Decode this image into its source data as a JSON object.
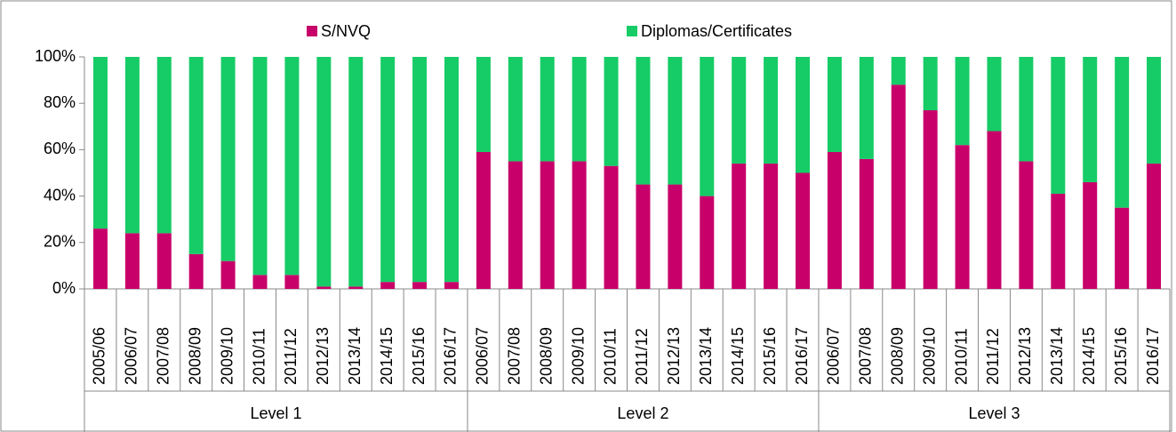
{
  "chart_data": {
    "type": "stacked_bar_percent",
    "groups": [
      "Level 1",
      "Level 2",
      "Level 3"
    ],
    "categories": [
      [
        "2005/06",
        "2006/07",
        "2007/08",
        "2008/09",
        "2009/10",
        "2010/11",
        "2011/12",
        "2012/13",
        "2013/14",
        "2014/15",
        "2015/16",
        "2016/17"
      ],
      [
        "2006/07",
        "2007/08",
        "2008/09",
        "2009/10",
        "2010/11",
        "2011/12",
        "2012/13",
        "2013/14",
        "2014/15",
        "2015/16",
        "2016/17"
      ],
      [
        "2006/07",
        "2007/08",
        "2008/09",
        "2009/10",
        "2010/11",
        "2011/12",
        "2012/13",
        "2013/14",
        "2014/15",
        "2015/16",
        "2016/17"
      ]
    ],
    "series": [
      {
        "name": "S/NVQ",
        "color": "#c8006a",
        "values": [
          [
            26,
            24,
            24,
            15,
            12,
            6,
            6,
            1,
            1,
            3,
            3,
            3
          ],
          [
            59,
            55,
            55,
            55,
            53,
            45,
            45,
            40,
            54,
            54,
            50
          ],
          [
            59,
            56,
            88,
            77,
            62,
            68,
            55,
            41,
            46,
            35,
            54
          ]
        ]
      },
      {
        "name": "Diplomas/Certificates",
        "color": "#16cc66",
        "values": [
          [
            74,
            76,
            76,
            85,
            88,
            94,
            94,
            99,
            99,
            97,
            97,
            97
          ],
          [
            41,
            45,
            45,
            45,
            47,
            55,
            55,
            60,
            46,
            46,
            50
          ],
          [
            41,
            44,
            12,
            23,
            38,
            32,
            45,
            59,
            54,
            65,
            46
          ]
        ]
      }
    ],
    "ylim": [
      0,
      100
    ],
    "yticks": [
      {
        "value": 0,
        "label": "0%"
      },
      {
        "value": 20,
        "label": "20%"
      },
      {
        "value": 40,
        "label": "40%"
      },
      {
        "value": 60,
        "label": "60%"
      },
      {
        "value": 80,
        "label": "80%"
      },
      {
        "value": 100,
        "label": "100%"
      }
    ],
    "grid": false,
    "legend": "top"
  }
}
